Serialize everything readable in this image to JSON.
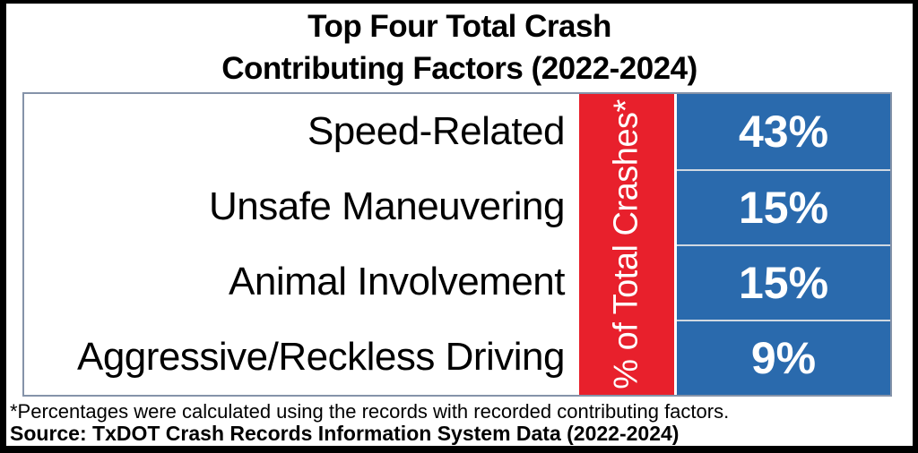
{
  "title": {
    "line1": "Top Four Total Crash",
    "line2": "Contributing Factors (2022-2024)"
  },
  "chart_data": {
    "type": "table",
    "title": "Top Four Total Crash Contributing Factors (2022-2024)",
    "value_column_header": "% of Total Crashes*",
    "categories": [
      "Speed-Related",
      "Unsafe Maneuvering",
      "Animal Involvement",
      "Aggressive/Reckless Driving"
    ],
    "values": [
      43,
      15,
      15,
      9
    ],
    "value_unit": "%",
    "layout_hints": {
      "orientation": "rows",
      "header_band": "rotated -90deg, red background, white text",
      "value_cells": "blue background, white bold text"
    }
  },
  "table": {
    "band_label": "% of Total Crashes*",
    "rows": [
      {
        "label": "Speed-Related",
        "value": "43%"
      },
      {
        "label": "Unsafe Maneuvering",
        "value": "15%"
      },
      {
        "label": "Animal Involvement",
        "value": "15%"
      },
      {
        "label": "Aggressive/Reckless Driving",
        "value": "9%"
      }
    ]
  },
  "footnotes": {
    "note": "*Percentages were calculated using the records with recorded contributing factors.",
    "source": "Source: TxDOT Crash Records Information System Data (2022-2024)"
  },
  "colors": {
    "frame": "#000000",
    "background": "#FFFFFF",
    "red_band": "#E8202C",
    "blue_cell": "#2A6AAD",
    "table_border": "#8593A9",
    "blue_separator": "#CFD8E2",
    "text": "#000000",
    "value_text": "#FFFFFF"
  }
}
